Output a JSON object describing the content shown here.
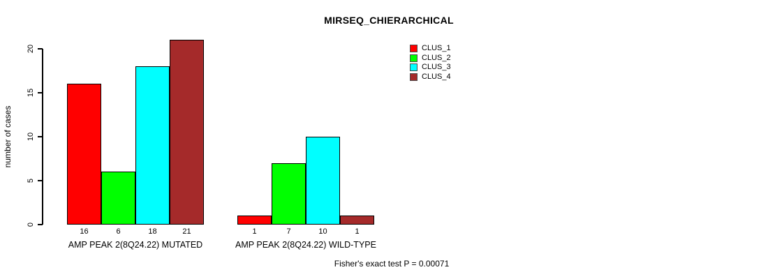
{
  "title": "MIRSEQ_CHIERARCHICAL",
  "ylabel": "number of cases",
  "footer": "Fisher's exact test P = 0.00071",
  "legend": [
    {
      "label": "CLUS_1",
      "color": "#ff0000"
    },
    {
      "label": "CLUS_2",
      "color": "#00ff00"
    },
    {
      "label": "CLUS_3",
      "color": "#00ffff"
    },
    {
      "label": "CLUS_4",
      "color": "#a52a2a"
    }
  ],
  "chart_data": {
    "type": "bar",
    "title": "MIRSEQ_CHIERARCHICAL",
    "xlabel": "",
    "ylabel": "number of cases",
    "ylim": [
      0,
      21
    ],
    "yticks": [
      0,
      5,
      10,
      15,
      20
    ],
    "grid": false,
    "legend_position": "top-right",
    "categories": [
      "AMP PEAK 2(8Q24.22) MUTATED",
      "AMP PEAK 2(8Q24.22) WILD-TYPE"
    ],
    "series": [
      {
        "name": "CLUS_1",
        "color": "#ff0000",
        "values": [
          16,
          1
        ]
      },
      {
        "name": "CLUS_2",
        "color": "#00ff00",
        "values": [
          6,
          7
        ]
      },
      {
        "name": "CLUS_3",
        "color": "#00ffff",
        "values": [
          18,
          10
        ]
      },
      {
        "name": "CLUS_4",
        "color": "#a52a2a",
        "values": [
          21,
          1
        ]
      }
    ],
    "groups": [
      {
        "label": "AMP PEAK 2(8Q24.22) MUTATED",
        "values": [
          16,
          6,
          18,
          21
        ]
      },
      {
        "label": "AMP PEAK 2(8Q24.22) WILD-TYPE",
        "values": [
          1,
          7,
          10,
          1
        ]
      }
    ],
    "bar_value_labels_shown": true,
    "annotation": "Fisher's exact test P = 0.00071"
  }
}
